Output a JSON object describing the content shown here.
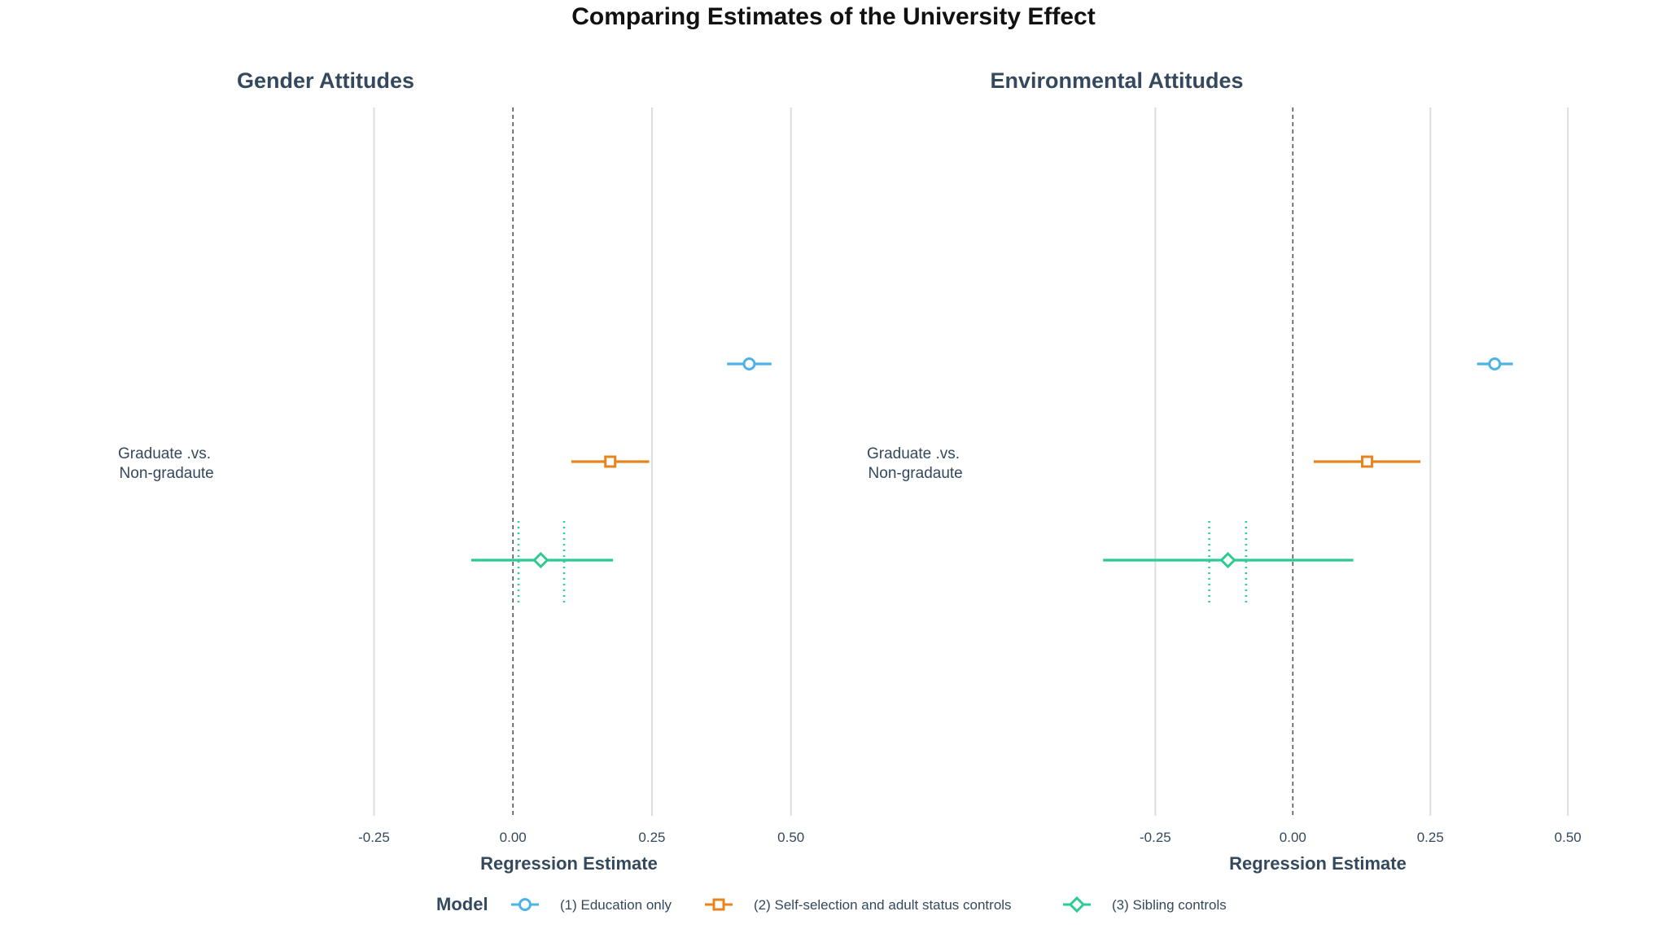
{
  "title": "Comparing Estimates of the University Effect",
  "legend": {
    "title": "Model",
    "items": [
      {
        "label": "(1) Education only",
        "marker": "circle",
        "color": "#4DB3E6"
      },
      {
        "label": "(2) Self-selection and adult status controls",
        "marker": "square",
        "color": "#E8831E"
      },
      {
        "label": "(3) Sibling controls",
        "marker": "diamond",
        "color": "#2BCB92"
      }
    ]
  },
  "colors": {
    "text": "#34495E",
    "grid": "#DDDDDD",
    "zero_line": "#555555"
  },
  "chart_data": [
    {
      "type": "scatter",
      "subtitle": "Gender Attitudes",
      "xlabel": "Regression Estimate",
      "ylabel": "",
      "xlim": [
        -0.34,
        0.6
      ],
      "xticks": [
        -0.25,
        0.0,
        0.25,
        0.5
      ],
      "xtick_labels": [
        "-0.25",
        "0.00",
        "0.25",
        "0.50"
      ],
      "category": "Graduate .vs.\n Non-gradaute",
      "grid": true,
      "zero_reference_line": 0,
      "series": [
        {
          "name": "(1) Education only",
          "estimate": 0.425,
          "ci": [
            0.385,
            0.465
          ]
        },
        {
          "name": "(2) Self-selection and adult status controls",
          "estimate": 0.175,
          "ci": [
            0.105,
            0.245
          ]
        },
        {
          "name": "(3) Sibling controls",
          "estimate": 0.05,
          "ci": [
            -0.075,
            0.18
          ],
          "inner_ci": [
            0.01,
            0.092
          ]
        }
      ]
    },
    {
      "type": "scatter",
      "subtitle": "Environmental Attitudes",
      "xlabel": "Regression Estimate",
      "ylabel": "",
      "xlim": [
        -0.4,
        0.55
      ],
      "xticks": [
        -0.25,
        0.0,
        0.25,
        0.5
      ],
      "xtick_labels": [
        "-0.25",
        "0.00",
        "0.25",
        "0.50"
      ],
      "category": "Graduate .vs.\n Non-gradaute",
      "grid": true,
      "zero_reference_line": 0,
      "series": [
        {
          "name": "(1) Education only",
          "estimate": 0.367,
          "ci": [
            0.335,
            0.4
          ]
        },
        {
          "name": "(2) Self-selection and adult status controls",
          "estimate": 0.135,
          "ci": [
            0.038,
            0.232
          ]
        },
        {
          "name": "(3) Sibling controls",
          "estimate": -0.118,
          "ci": [
            -0.345,
            0.11
          ],
          "inner_ci": [
            -0.152,
            -0.085
          ]
        }
      ]
    }
  ]
}
